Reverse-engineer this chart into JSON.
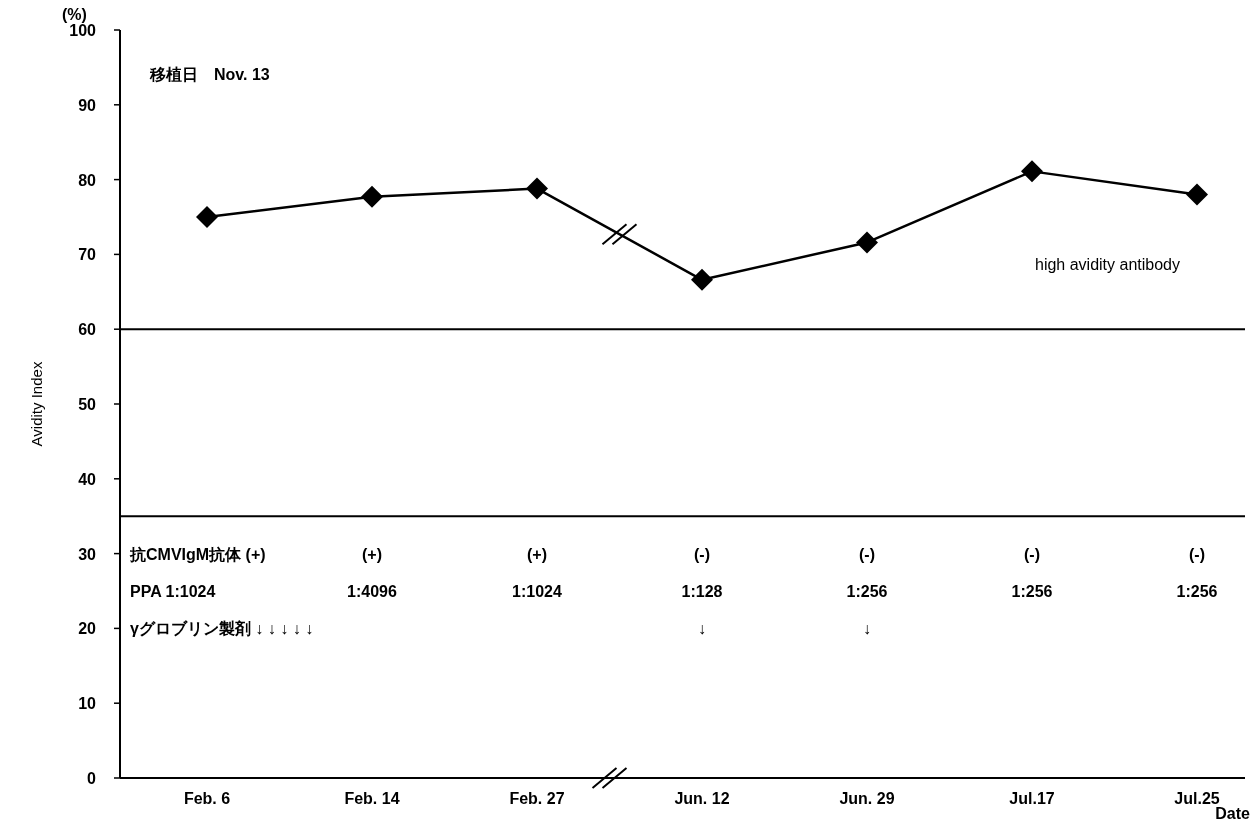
{
  "chart_data": {
    "type": "line",
    "ylabel": "Avidity Index",
    "xlabel": "Date",
    "categories": [
      "Feb. 6",
      "Feb. 14",
      "Feb. 27",
      "Jun. 12",
      "Jun. 29",
      "Jul.17",
      "Jul.25"
    ],
    "series": [
      {
        "color": "#000000",
        "values": [
          75,
          77.7,
          78.8,
          66.6,
          71.6,
          81.1,
          78
        ]
      }
    ],
    "marker": "diamond",
    "line_style": "solid",
    "grid": false,
    "ylim": [
      0,
      100
    ],
    "yticks": [
      0,
      10,
      20,
      30,
      40,
      50,
      60,
      70,
      80,
      90,
      100
    ],
    "ref_lines": [
      {
        "axis": "y",
        "value": 60,
        "color": "#000000"
      },
      {
        "axis": "y",
        "value": 35,
        "color": "#000000"
      }
    ],
    "annotations": [
      "(%)",
      "移植日　Nov. 13",
      "high avidity antibody",
      "γグロブリン製剤 ↓ ↓ ↓ ↓ ↓",
      "抗CMVIgM抗体 (+)",
      "(+)",
      "(+)",
      "(-)",
      "(-)",
      "(-)",
      "(-)",
      "PPA 1:1024",
      "1:4096",
      "1:1024",
      "1:128",
      "1:256",
      "1:256",
      "1:256",
      "↓",
      "↓"
    ]
  }
}
